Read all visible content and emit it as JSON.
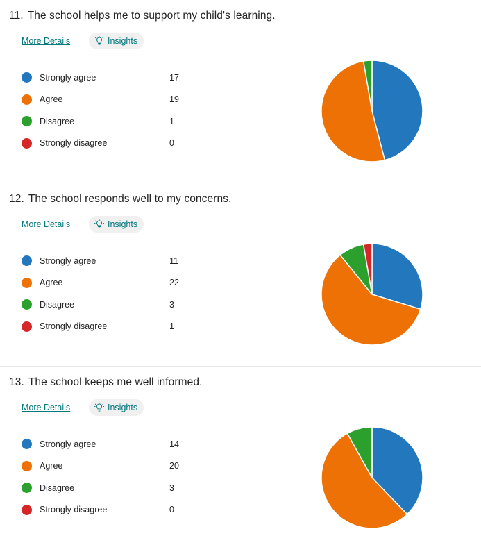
{
  "colors": {
    "strongly_agree": "#2378bd",
    "agree": "#ed7104",
    "disagree": "#2ca02c",
    "strongly_disagree": "#d62728",
    "link": "#03787c"
  },
  "labels": {
    "more_details": "More Details",
    "insights": "Insights"
  },
  "questions": [
    {
      "number": "11.",
      "title": "The school helps me to support my child's learning."
    },
    {
      "number": "12.",
      "title": "The school responds well to my concerns."
    },
    {
      "number": "13.",
      "title": "The school keeps me well informed."
    }
  ],
  "chart_data": [
    {
      "type": "pie",
      "title": "The school helps me to support my child's learning.",
      "categories": [
        "Strongly agree",
        "Agree",
        "Disagree",
        "Strongly disagree"
      ],
      "values": [
        17,
        19,
        1,
        0
      ],
      "legend_position": "left"
    },
    {
      "type": "pie",
      "title": "The school responds well to my concerns.",
      "categories": [
        "Strongly agree",
        "Agree",
        "Disagree",
        "Strongly disagree"
      ],
      "values": [
        11,
        22,
        3,
        1
      ],
      "legend_position": "left"
    },
    {
      "type": "pie",
      "title": "The school keeps me well informed.",
      "categories": [
        "Strongly agree",
        "Agree",
        "Disagree",
        "Strongly disagree"
      ],
      "values": [
        14,
        20,
        3,
        0
      ],
      "legend_position": "left"
    }
  ]
}
